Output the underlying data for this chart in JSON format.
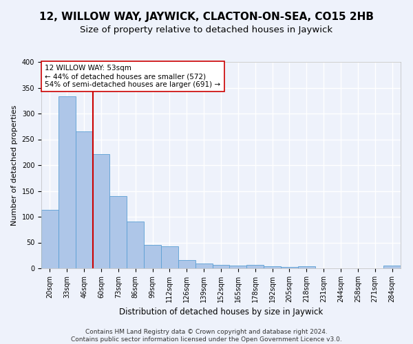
{
  "title": "12, WILLOW WAY, JAYWICK, CLACTON-ON-SEA, CO15 2HB",
  "subtitle": "Size of property relative to detached houses in Jaywick",
  "xlabel": "Distribution of detached houses by size in Jaywick",
  "ylabel": "Number of detached properties",
  "categories": [
    "20sqm",
    "33sqm",
    "46sqm",
    "60sqm",
    "73sqm",
    "86sqm",
    "99sqm",
    "112sqm",
    "126sqm",
    "139sqm",
    "152sqm",
    "165sqm",
    "178sqm",
    "192sqm",
    "205sqm",
    "218sqm",
    "231sqm",
    "244sqm",
    "258sqm",
    "271sqm",
    "284sqm"
  ],
  "values": [
    114,
    333,
    265,
    222,
    140,
    91,
    45,
    43,
    16,
    10,
    7,
    5,
    7,
    4,
    3,
    4,
    0,
    0,
    0,
    0,
    5
  ],
  "bar_color": "#aec6e8",
  "bar_edgecolor": "#5a9fd4",
  "bg_color": "#eef2fb",
  "grid_color": "#ffffff",
  "vline_x": 2.5,
  "vline_color": "#cc0000",
  "annotation_line1": "12 WILLOW WAY: 53sqm",
  "annotation_line2": "← 44% of detached houses are smaller (572)",
  "annotation_line3": "54% of semi-detached houses are larger (691) →",
  "annotation_box_color": "#ffffff",
  "annotation_box_edgecolor": "#cc0000",
  "footer_text": "Contains HM Land Registry data © Crown copyright and database right 2024.\nContains public sector information licensed under the Open Government Licence v3.0.",
  "ylim": [
    0,
    400
  ],
  "title_fontsize": 11,
  "subtitle_fontsize": 9.5,
  "xlabel_fontsize": 8.5,
  "ylabel_fontsize": 8,
  "tick_fontsize": 7,
  "annotation_fontsize": 7.5,
  "footer_fontsize": 6.5
}
